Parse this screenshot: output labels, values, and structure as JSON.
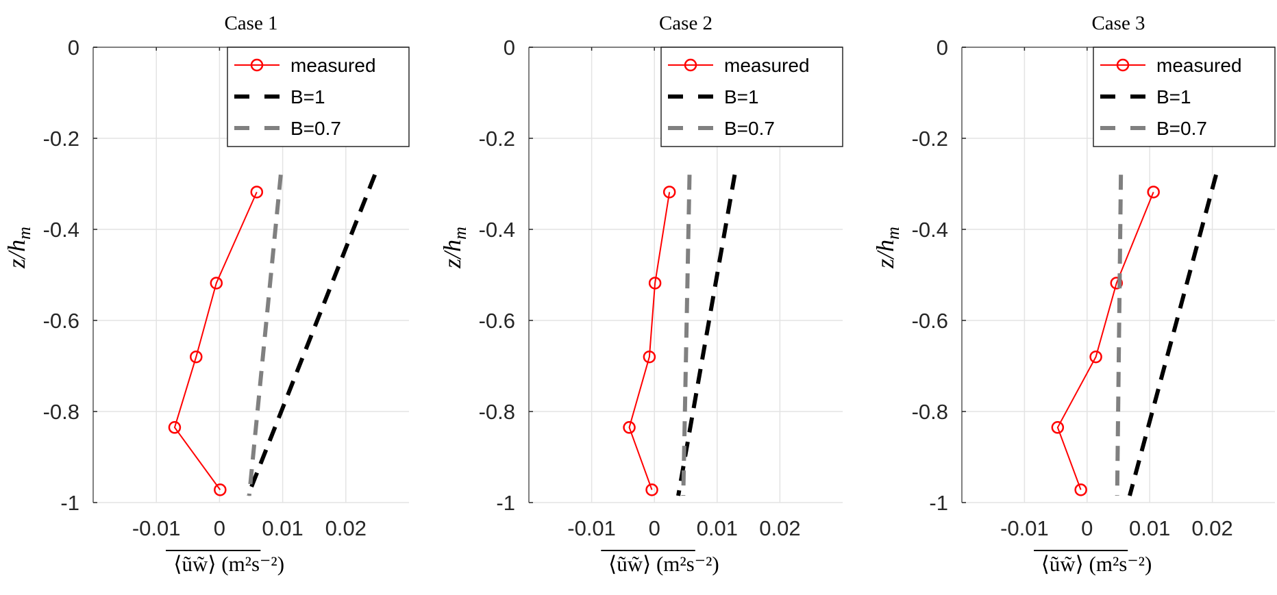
{
  "chart_data": [
    {
      "type": "line",
      "title": "Case 1",
      "xlabel": "⟨ũw̃⟩ (m²s⁻²)",
      "ylabel": "z/h_m",
      "xlim": [
        -0.02,
        0.03
      ],
      "ylim": [
        -1,
        0
      ],
      "xticks": [
        "-0.01",
        "0",
        "0.01",
        "0.02"
      ],
      "xtick_values": [
        -0.01,
        0,
        0.01,
        0.02
      ],
      "yticks": [
        "0",
        "-0.2",
        "-0.4",
        "-0.6",
        "-0.8",
        "-1"
      ],
      "ytick_values": [
        0,
        -0.2,
        -0.4,
        -0.6,
        -0.8,
        -1
      ],
      "grid": true,
      "legend_position": "top-right",
      "series": [
        {
          "name": "measured",
          "style": "solid-circle",
          "color": "#ff0000",
          "x": [
            0.0059,
            -0.0005,
            -0.0037,
            -0.0071,
            0.0001
          ],
          "y": [
            -0.318,
            -0.518,
            -0.68,
            -0.835,
            -0.972
          ]
        },
        {
          "name": "B=1",
          "style": "dashed",
          "color": "#000000",
          "x": [
            0.0246,
            0.0045
          ],
          "y": [
            -0.28,
            -0.985
          ]
        },
        {
          "name": "B=0.7",
          "style": "dashed",
          "color": "#808080",
          "x": [
            0.0097,
            0.0047
          ],
          "y": [
            -0.28,
            -0.985
          ]
        }
      ]
    },
    {
      "type": "line",
      "title": "Case 2",
      "xlabel": "⟨ũw̃⟩ (m²s⁻²)",
      "ylabel": "z/h_m",
      "xlim": [
        -0.02,
        0.03
      ],
      "ylim": [
        -1,
        0
      ],
      "xticks": [
        "-0.01",
        "0",
        "0.01",
        "0.02"
      ],
      "xtick_values": [
        -0.01,
        0,
        0.01,
        0.02
      ],
      "yticks": [
        "0",
        "-0.2",
        "-0.4",
        "-0.6",
        "-0.8",
        "-1"
      ],
      "ytick_values": [
        0,
        -0.2,
        -0.4,
        -0.6,
        -0.8,
        -1
      ],
      "grid": true,
      "legend_position": "top-right",
      "series": [
        {
          "name": "measured",
          "style": "solid-circle",
          "color": "#ff0000",
          "x": [
            0.0024,
            0.0001,
            -0.0008,
            -0.004,
            -0.0004
          ],
          "y": [
            -0.318,
            -0.518,
            -0.68,
            -0.835,
            -0.972
          ]
        },
        {
          "name": "B=1",
          "style": "dashed",
          "color": "#000000",
          "x": [
            0.0128,
            0.0038
          ],
          "y": [
            -0.28,
            -0.985
          ]
        },
        {
          "name": "B=0.7",
          "style": "dashed",
          "color": "#808080",
          "x": [
            0.0056,
            0.0046
          ],
          "y": [
            -0.28,
            -0.985
          ]
        }
      ]
    },
    {
      "type": "line",
      "title": "Case 3",
      "xlabel": "⟨ũw̃⟩ (m²s⁻²)",
      "ylabel": "z/h_m",
      "xlim": [
        -0.02,
        0.03
      ],
      "ylim": [
        -1,
        0
      ],
      "xticks": [
        "-0.01",
        "0",
        "0.01",
        "0.02"
      ],
      "xtick_values": [
        -0.01,
        0,
        0.01,
        0.02
      ],
      "yticks": [
        "0",
        "-0.2",
        "-0.4",
        "-0.6",
        "-0.8",
        "-1"
      ],
      "ytick_values": [
        0,
        -0.2,
        -0.4,
        -0.6,
        -0.8,
        -1
      ],
      "grid": true,
      "legend_position": "top-right",
      "series": [
        {
          "name": "measured",
          "style": "solid-circle",
          "color": "#ff0000",
          "x": [
            0.0106,
            0.0047,
            0.0014,
            -0.0047,
            -0.001
          ],
          "y": [
            -0.318,
            -0.518,
            -0.68,
            -0.835,
            -0.972
          ]
        },
        {
          "name": "B=1",
          "style": "dashed",
          "color": "#000000",
          "x": [
            0.0206,
            0.0068
          ],
          "y": [
            -0.28,
            -0.985
          ]
        },
        {
          "name": "B=0.7",
          "style": "dashed",
          "color": "#808080",
          "x": [
            0.0054,
            0.0048
          ],
          "y": [
            -0.28,
            -0.985
          ]
        }
      ]
    }
  ]
}
